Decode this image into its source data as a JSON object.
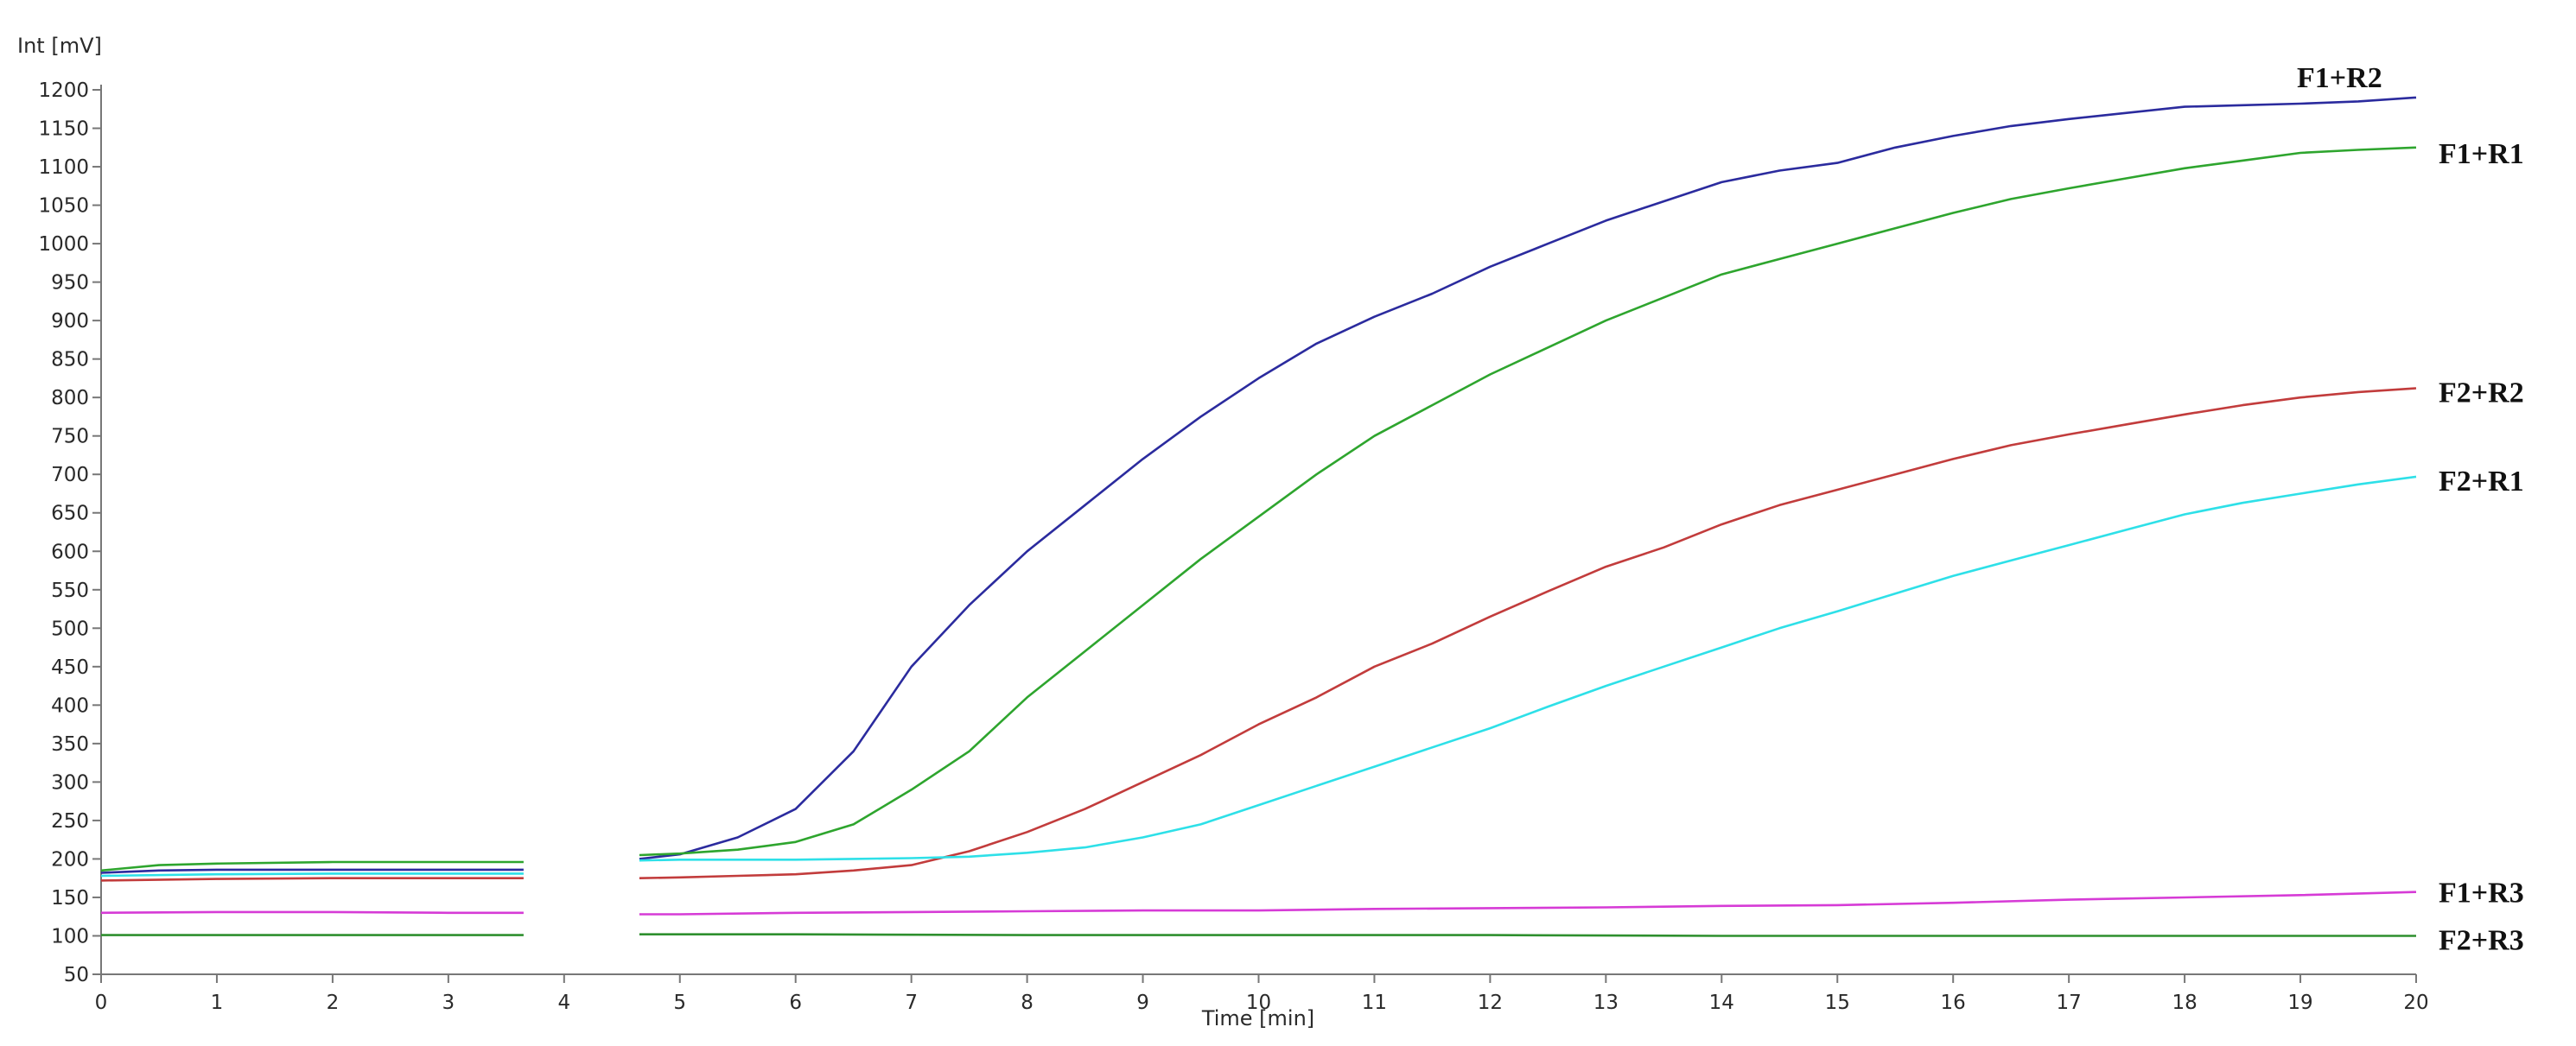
{
  "chart_data": {
    "type": "line",
    "ylabel": "Int [mV]",
    "xlabel": "Time [min]",
    "xlim": [
      0,
      20
    ],
    "ylim": [
      50,
      1200
    ],
    "xticks": [
      0,
      1,
      2,
      3,
      4,
      5,
      6,
      7,
      8,
      9,
      10,
      11,
      12,
      13,
      14,
      15,
      16,
      17,
      18,
      19,
      20
    ],
    "yticks": [
      50,
      100,
      150,
      200,
      250,
      300,
      350,
      400,
      450,
      500,
      550,
      600,
      650,
      700,
      750,
      800,
      850,
      900,
      950,
      1000,
      1050,
      1100,
      1150,
      1200
    ],
    "grid": false,
    "legend": "labels at right end of each series",
    "series": [
      {
        "name": "F1+R2",
        "color": "#2b2b9e",
        "segments": [
          [
            [
              0,
              182
            ],
            [
              0.5,
              185
            ],
            [
              1,
              186
            ],
            [
              2,
              186
            ],
            [
              3,
              186
            ],
            [
              3.65,
              186
            ]
          ],
          [
            [
              4.65,
              200
            ],
            [
              5,
              206
            ],
            [
              5.5,
              228
            ],
            [
              6,
              265
            ],
            [
              6.5,
              340
            ],
            [
              7,
              450
            ],
            [
              7.5,
              530
            ],
            [
              8,
              600
            ],
            [
              8.5,
              660
            ],
            [
              9,
              720
            ],
            [
              9.5,
              775
            ],
            [
              10,
              825
            ],
            [
              10.5,
              870
            ],
            [
              11,
              905
            ],
            [
              11.5,
              935
            ],
            [
              12,
              970
            ],
            [
              12.5,
              1000
            ],
            [
              13,
              1030
            ],
            [
              13.5,
              1055
            ],
            [
              14,
              1080
            ],
            [
              14.5,
              1095
            ],
            [
              15,
              1105
            ],
            [
              15.5,
              1125
            ],
            [
              16,
              1140
            ],
            [
              16.5,
              1153
            ],
            [
              17,
              1162
            ],
            [
              17.5,
              1170
            ],
            [
              18,
              1178
            ],
            [
              18.5,
              1180
            ],
            [
              19,
              1182
            ],
            [
              19.5,
              1185
            ],
            [
              20,
              1190
            ]
          ]
        ]
      },
      {
        "name": "F1+R1",
        "color": "#2ea52e",
        "segments": [
          [
            [
              0,
              185
            ],
            [
              0.5,
              192
            ],
            [
              1,
              194
            ],
            [
              2,
              196
            ],
            [
              3,
              196
            ],
            [
              3.65,
              196
            ]
          ],
          [
            [
              4.65,
              205
            ],
            [
              5,
              207
            ],
            [
              5.5,
              212
            ],
            [
              6,
              222
            ],
            [
              6.5,
              245
            ],
            [
              7,
              290
            ],
            [
              7.5,
              340
            ],
            [
              8,
              410
            ],
            [
              8.5,
              470
            ],
            [
              9,
              530
            ],
            [
              9.5,
              590
            ],
            [
              10,
              645
            ],
            [
              10.5,
              700
            ],
            [
              11,
              750
            ],
            [
              11.5,
              790
            ],
            [
              12,
              830
            ],
            [
              12.5,
              865
            ],
            [
              13,
              900
            ],
            [
              13.5,
              930
            ],
            [
              14,
              960
            ],
            [
              14.5,
              980
            ],
            [
              15,
              1000
            ],
            [
              15.5,
              1020
            ],
            [
              16,
              1040
            ],
            [
              16.5,
              1058
            ],
            [
              17,
              1072
            ],
            [
              17.5,
              1085
            ],
            [
              18,
              1098
            ],
            [
              18.5,
              1108
            ],
            [
              19,
              1118
            ],
            [
              19.5,
              1122
            ],
            [
              20,
              1125
            ]
          ]
        ]
      },
      {
        "name": "F2+R2",
        "color": "#c23c3c",
        "segments": [
          [
            [
              0,
              172
            ],
            [
              1,
              174
            ],
            [
              2,
              175
            ],
            [
              3,
              175
            ],
            [
              3.65,
              175
            ]
          ],
          [
            [
              4.65,
              175
            ],
            [
              5,
              176
            ],
            [
              5.5,
              178
            ],
            [
              6,
              180
            ],
            [
              6.5,
              185
            ],
            [
              7,
              192
            ],
            [
              7.5,
              210
            ],
            [
              8,
              235
            ],
            [
              8.5,
              265
            ],
            [
              9,
              300
            ],
            [
              9.5,
              335
            ],
            [
              10,
              375
            ],
            [
              10.5,
              410
            ],
            [
              11,
              450
            ],
            [
              11.5,
              480
            ],
            [
              12,
              515
            ],
            [
              12.5,
              548
            ],
            [
              13,
              580
            ],
            [
              13.5,
              605
            ],
            [
              14,
              635
            ],
            [
              14.5,
              660
            ],
            [
              15,
              680
            ],
            [
              15.5,
              700
            ],
            [
              16,
              720
            ],
            [
              16.5,
              738
            ],
            [
              17,
              752
            ],
            [
              17.5,
              765
            ],
            [
              18,
              778
            ],
            [
              18.5,
              790
            ],
            [
              19,
              800
            ],
            [
              19.5,
              807
            ],
            [
              20,
              812
            ]
          ]
        ]
      },
      {
        "name": "F2+R1",
        "color": "#2ee0e8",
        "segments": [
          [
            [
              0,
              178
            ],
            [
              1,
              180
            ],
            [
              2,
              181
            ],
            [
              3,
              181
            ],
            [
              3.65,
              181
            ]
          ],
          [
            [
              4.65,
              198
            ],
            [
              5,
              199
            ],
            [
              5.5,
              199
            ],
            [
              6,
              199
            ],
            [
              6.5,
              200
            ],
            [
              7,
              201
            ],
            [
              7.5,
              203
            ],
            [
              8,
              208
            ],
            [
              8.5,
              215
            ],
            [
              9,
              228
            ],
            [
              9.5,
              245
            ],
            [
              10,
              270
            ],
            [
              10.5,
              295
            ],
            [
              11,
              320
            ],
            [
              11.5,
              345
            ],
            [
              12,
              370
            ],
            [
              12.5,
              398
            ],
            [
              13,
              425
            ],
            [
              13.5,
              450
            ],
            [
              14,
              475
            ],
            [
              14.5,
              500
            ],
            [
              15,
              522
            ],
            [
              15.5,
              545
            ],
            [
              16,
              568
            ],
            [
              16.5,
              588
            ],
            [
              17,
              608
            ],
            [
              17.5,
              628
            ],
            [
              18,
              648
            ],
            [
              18.5,
              663
            ],
            [
              19,
              675
            ],
            [
              19.5,
              687
            ],
            [
              20,
              697
            ]
          ]
        ]
      },
      {
        "name": "F1+R3",
        "color": "#d63bd6",
        "segments": [
          [
            [
              0,
              130
            ],
            [
              1,
              131
            ],
            [
              2,
              131
            ],
            [
              3,
              130
            ],
            [
              3.65,
              130
            ]
          ],
          [
            [
              4.65,
              128
            ],
            [
              5,
              128
            ],
            [
              6,
              130
            ],
            [
              7,
              131
            ],
            [
              8,
              132
            ],
            [
              9,
              133
            ],
            [
              10,
              133
            ],
            [
              11,
              135
            ],
            [
              12,
              136
            ],
            [
              13,
              137
            ],
            [
              14,
              139
            ],
            [
              15,
              140
            ],
            [
              16,
              143
            ],
            [
              17,
              147
            ],
            [
              18,
              150
            ],
            [
              19,
              153
            ],
            [
              20,
              157
            ]
          ]
        ]
      },
      {
        "name": "F2+R3",
        "color": "#2e8f2e",
        "segments": [
          [
            [
              0,
              101
            ],
            [
              1,
              101
            ],
            [
              2,
              101
            ],
            [
              3,
              101
            ],
            [
              3.65,
              101
            ]
          ],
          [
            [
              4.65,
              102
            ],
            [
              6,
              102
            ],
            [
              8,
              101
            ],
            [
              10,
              101
            ],
            [
              12,
              101
            ],
            [
              14,
              100
            ],
            [
              16,
              100
            ],
            [
              18,
              100
            ],
            [
              20,
              100
            ]
          ]
        ]
      }
    ]
  }
}
